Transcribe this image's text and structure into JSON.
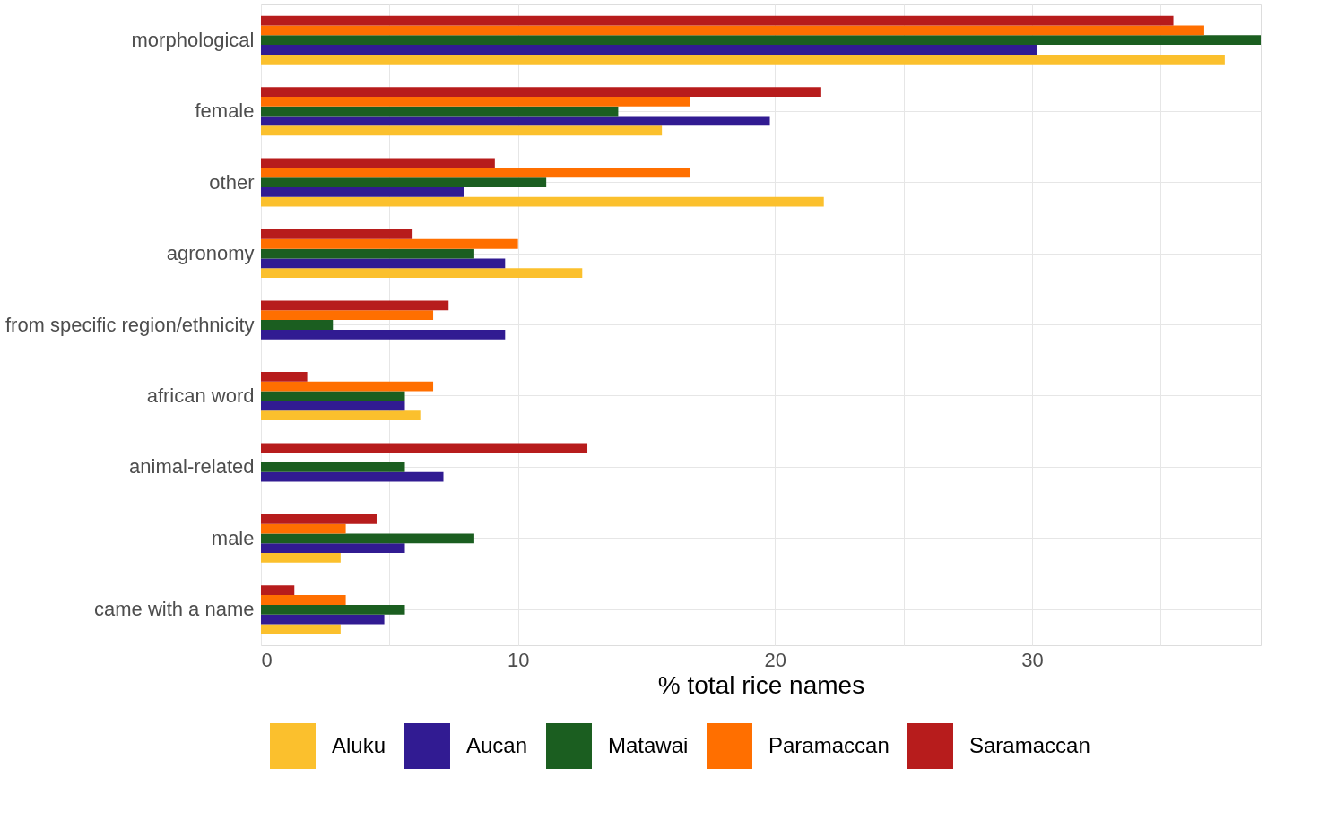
{
  "chart_data": {
    "type": "bar",
    "orientation": "horizontal",
    "xlabel": "% total rice names",
    "categories": [
      "morphological",
      "female",
      "other",
      "agronomy",
      "from specific region/ethnicity",
      "african word",
      "animal-related",
      "male",
      "came with a name"
    ],
    "series": [
      {
        "name": "Aluku",
        "color": "#fbc02d",
        "values": [
          37.5,
          15.6,
          21.9,
          12.5,
          null,
          6.2,
          null,
          3.1,
          3.1
        ]
      },
      {
        "name": "Aucan",
        "color": "#311b92",
        "values": [
          30.2,
          19.8,
          7.9,
          9.5,
          9.5,
          5.6,
          7.1,
          5.6,
          4.8
        ]
      },
      {
        "name": "Matawai",
        "color": "#1b5e20",
        "values": [
          38.9,
          13.9,
          11.1,
          8.3,
          2.8,
          5.6,
          5.6,
          8.3,
          5.6
        ]
      },
      {
        "name": "Paramaccan",
        "color": "#ff6f00",
        "values": [
          36.7,
          16.7,
          16.7,
          10.0,
          6.7,
          6.7,
          null,
          3.3,
          3.3
        ]
      },
      {
        "name": "Saramaccan",
        "color": "#b71c1c",
        "values": [
          35.5,
          21.8,
          9.1,
          5.9,
          7.3,
          1.8,
          12.7,
          4.5,
          1.3
        ]
      }
    ],
    "xlim": [
      0,
      38.9
    ],
    "xticks": [
      0,
      {
        "value": 5,
        "label": null
      },
      10,
      {
        "value": 15,
        "label": null
      },
      20,
      {
        "value": 25,
        "label": null
      },
      30,
      {
        "value": 35,
        "label": null
      }
    ],
    "grid": true,
    "legend": "bottom"
  }
}
